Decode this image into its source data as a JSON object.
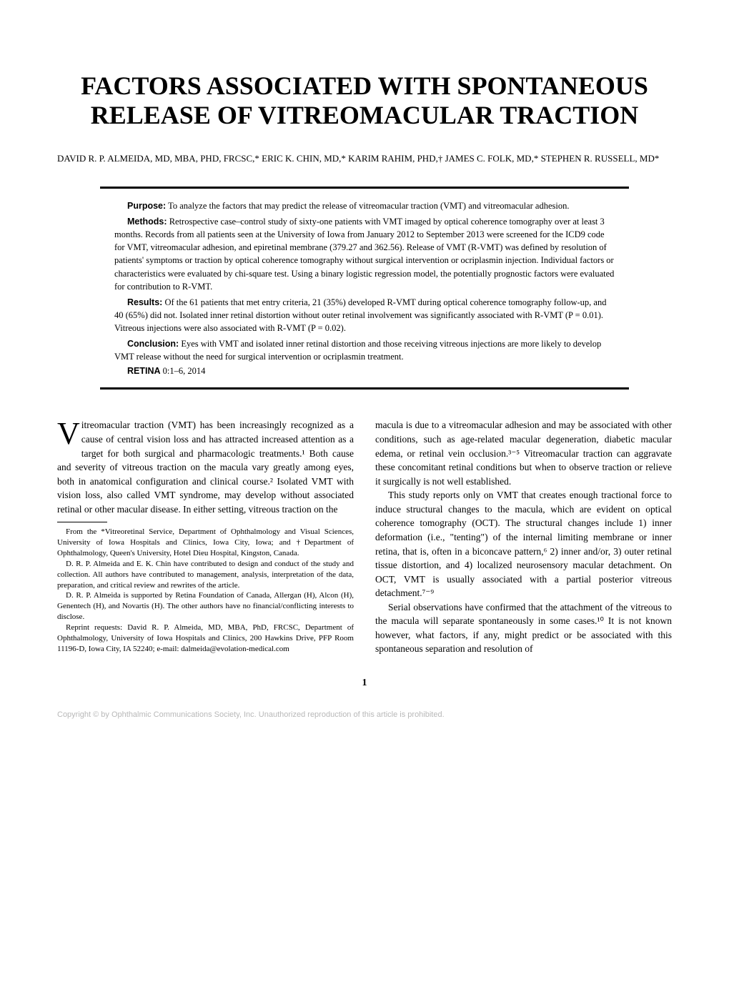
{
  "title": "FACTORS ASSOCIATED WITH SPONTANEOUS RELEASE OF VITREOMACULAR TRACTION",
  "authors": "DAVID R. P. ALMEIDA, MD, MBA, PHD, FRCSC,* ERIC K. CHIN, MD,* KARIM RAHIM, PHD,† JAMES C. FOLK, MD,* STEPHEN R. RUSSELL, MD*",
  "abstract": {
    "purpose": {
      "label": "Purpose:",
      "text": " To analyze the factors that may predict the release of vitreomacular traction (VMT) and vitreomacular adhesion."
    },
    "methods": {
      "label": "Methods:",
      "text": " Retrospective case–control study of sixty-one patients with VMT imaged by optical coherence tomography over at least 3 months. Records from all patients seen at the University of Iowa from January 2012 to September 2013 were screened for the ICD9 code for VMT, vitreomacular adhesion, and epiretinal membrane (379.27 and 362.56). Release of VMT (R-VMT) was defined by resolution of patients' symptoms or traction by optical coherence tomography without surgical intervention or ocriplasmin injection. Individual factors or characteristics were evaluated by chi-square test. Using a binary logistic regression model, the potentially prognostic factors were evaluated for contribution to R-VMT."
    },
    "results": {
      "label": "Results:",
      "text": " Of the 61 patients that met entry criteria, 21 (35%) developed R-VMT during optical coherence tomography follow-up, and 40 (65%) did not. Isolated inner retinal distortion without outer retinal involvement was significantly associated with R-VMT (P = 0.01). Vitreous injections were also associated with R-VMT (P = 0.02)."
    },
    "conclusion": {
      "label": "Conclusion:",
      "text": " Eyes with VMT and isolated inner retinal distortion and those receiving vitreous injections are more likely to develop VMT release without the need for surgical intervention or ocriplasmin treatment."
    },
    "journal": {
      "name": "RETINA",
      "ref": " 0:1–6, 2014"
    }
  },
  "body": {
    "left": {
      "p1_dropcap": "V",
      "p1": "itreomacular traction (VMT) has been increasingly recognized as a cause of central vision loss and has attracted increased attention as a target for both surgical and pharmacologic treatments.¹ Both cause and severity of vitreous traction on the macula vary greatly among eyes, both in anatomical configuration and clinical course.² Isolated VMT with vision loss, also called VMT syndrome, may develop without associated retinal or other macular disease. In either setting, vitreous traction on the"
    },
    "right": {
      "p1": "macula is due to a vitreomacular adhesion and may be associated with other conditions, such as age-related macular degeneration, diabetic macular edema, or retinal vein occlusion.³⁻⁵ Vitreomacular traction can aggravate these concomitant retinal conditions but when to observe traction or relieve it surgically is not well established.",
      "p2": "This study reports only on VMT that creates enough tractional force to induce structural changes to the macula, which are evident on optical coherence tomography (OCT). The structural changes include 1) inner deformation (i.e., \"tenting\") of the internal limiting membrane or inner retina, that is, often in a biconcave pattern,⁶ 2) inner and/or, 3) outer retinal tissue distortion, and 4) localized neurosensory macular detachment. On OCT, VMT is usually associated with a partial posterior vitreous detachment.⁷⁻⁹",
      "p3": "Serial observations have confirmed that the attachment of the vitreous to the macula will separate spontaneously in some cases.¹⁰ It is not known however, what factors, if any, might predict or be associated with this spontaneous separation and resolution of"
    }
  },
  "footnotes": {
    "f1": "From the *Vitreoretinal Service, Department of Ophthalmology and Visual Sciences, University of Iowa Hospitals and Clinics, Iowa City, Iowa; and †Department of Ophthalmology, Queen's University, Hotel Dieu Hospital, Kingston, Canada.",
    "f2": "D. R. P. Almeida and E. K. Chin have contributed to design and conduct of the study and collection. All authors have contributed to management, analysis, interpretation of the data, preparation, and critical review and rewrites of the article.",
    "f3": "D. R. P. Almeida is supported by Retina Foundation of Canada, Allergan (H), Alcon (H), Genentech (H), and Novartis (H). The other authors have no financial/conflicting interests to disclose.",
    "f4": "Reprint requests: David R. P. Almeida, MD, MBA, PhD, FRCSC, Department of Ophthalmology, University of Iowa Hospitals and Clinics, 200 Hawkins Drive, PFP Room 11196-D, Iowa City, IA 52240; e-mail: dalmeida@evolation-medical.com"
  },
  "page_number": "1",
  "copyright": "Copyright © by Ophthalmic Communications Society, Inc. Unauthorized reproduction of this article is prohibited."
}
